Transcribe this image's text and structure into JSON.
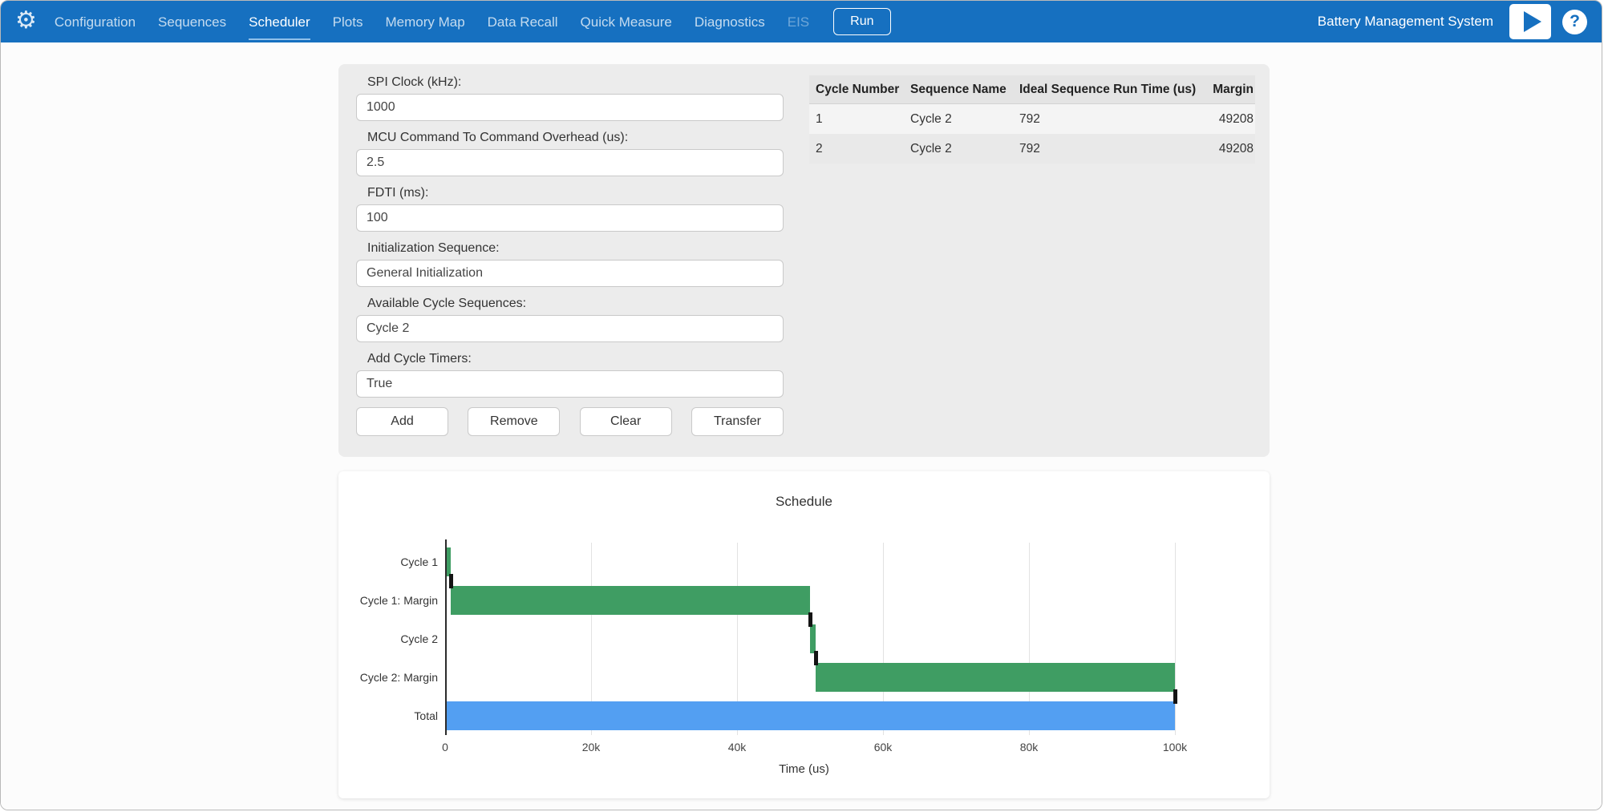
{
  "colors": {
    "navbar": "#1670c0",
    "green": "#3f9d63",
    "blue": "#539ff2"
  },
  "icons": {
    "gear": "⚙",
    "help": "?"
  },
  "navbar": {
    "brand": "Battery Management System",
    "run_label": "Run",
    "items": [
      {
        "label": "Configuration"
      },
      {
        "label": "Sequences"
      },
      {
        "label": "Scheduler"
      },
      {
        "label": "Plots"
      },
      {
        "label": "Memory Map"
      },
      {
        "label": "Data Recall"
      },
      {
        "label": "Quick Measure"
      },
      {
        "label": "Diagnostics"
      },
      {
        "label": "EIS"
      }
    ]
  },
  "form": {
    "fields": [
      {
        "label": "SPI Clock (kHz):",
        "value": "1000"
      },
      {
        "label": "MCU Command To Command Overhead (us):",
        "value": "2.5"
      },
      {
        "label": "FDTI (ms):",
        "value": "100"
      },
      {
        "label": "Initialization Sequence:",
        "value": "General Initialization"
      },
      {
        "label": "Available Cycle Sequences:",
        "value": "Cycle 2"
      },
      {
        "label": "Add Cycle Timers:",
        "value": "True"
      }
    ],
    "buttons": [
      "Add",
      "Remove",
      "Clear",
      "Transfer"
    ]
  },
  "table": {
    "headers": [
      "Cycle Number",
      "Sequence Name",
      "Ideal Sequence Run Time (us)",
      "Margin"
    ],
    "rows": [
      [
        "1",
        "Cycle 2",
        "792",
        "49208"
      ],
      [
        "2",
        "Cycle 2",
        "792",
        "49208"
      ]
    ]
  },
  "chart_data": {
    "type": "bar",
    "orientation": "horizontal",
    "title": "Schedule",
    "xlabel": "Time (us)",
    "xlim": [
      0,
      100000
    ],
    "xticks": [
      0,
      20000,
      40000,
      60000,
      80000,
      100000
    ],
    "xtick_labels": [
      "0",
      "20k",
      "40k",
      "60k",
      "80k",
      "100k"
    ],
    "categories": [
      "Cycle 1",
      "Cycle 1: Margin",
      "Cycle 2",
      "Cycle 2: Margin",
      "Total"
    ],
    "bars": [
      {
        "label": "Cycle 1",
        "start": 0,
        "end": 792,
        "color": "#3f9d63"
      },
      {
        "label": "Cycle 1: Margin",
        "start": 792,
        "end": 50000,
        "color": "#3f9d63"
      },
      {
        "label": "Cycle 2",
        "start": 50000,
        "end": 50792,
        "color": "#3f9d63"
      },
      {
        "label": "Cycle 2: Margin",
        "start": 50792,
        "end": 100000,
        "color": "#3f9d63"
      },
      {
        "label": "Total",
        "start": 0,
        "end": 100000,
        "color": "#539ff2"
      }
    ],
    "grid": true,
    "legend": false
  }
}
